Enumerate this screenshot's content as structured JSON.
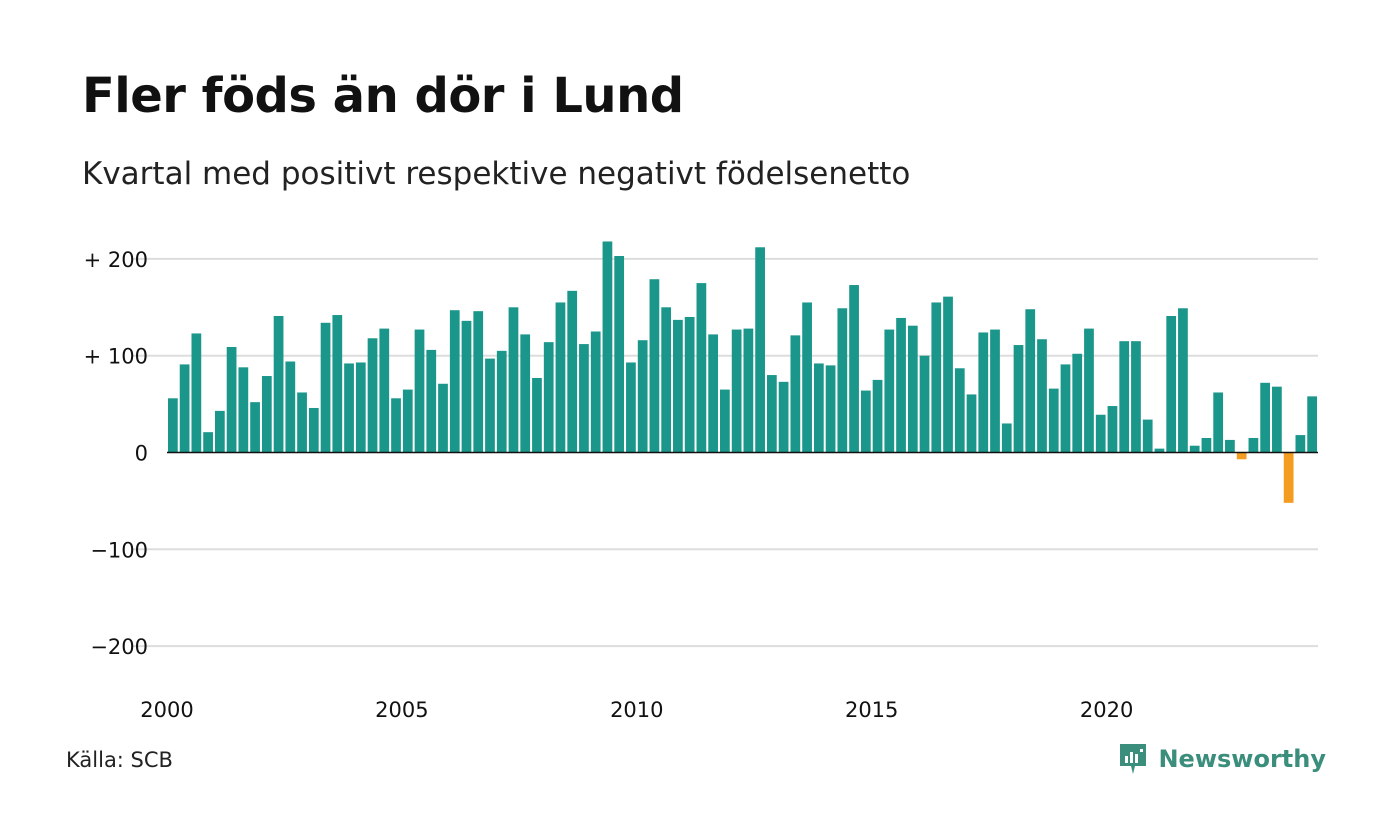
{
  "title": "Fler föds än dör i Lund",
  "subtitle": "Kvartal med positivt respektive negativt födelsenetto",
  "source": "Källa: SCB",
  "brand": {
    "name": "Newsworthy",
    "icon": "newsworthy-logo-icon",
    "color": "#3c8e7c"
  },
  "colors": {
    "positive": "#1b968a",
    "negative": "#f39c1f",
    "grid": "#dddddd",
    "axis": "#111111"
  },
  "chart_data": {
    "type": "bar",
    "x_start": 2000,
    "periods_per_year": 4,
    "ylim": [
      -220,
      230
    ],
    "y_ticks": [
      200,
      100,
      0,
      -100,
      -200
    ],
    "y_tick_labels": [
      "+ 200",
      "+ 100",
      "0",
      "−100",
      "−200"
    ],
    "x_ticks": [
      2000,
      2005,
      2010,
      2015,
      2020
    ],
    "x_tick_labels": [
      "2000",
      "2005",
      "2010",
      "2015",
      "2020"
    ],
    "grid": true,
    "legend": "none",
    "values": [
      56,
      91,
      123,
      21,
      43,
      109,
      88,
      52,
      79,
      141,
      94,
      62,
      46,
      134,
      142,
      92,
      93,
      118,
      128,
      56,
      65,
      127,
      106,
      71,
      147,
      136,
      146,
      97,
      105,
      150,
      122,
      77,
      114,
      155,
      167,
      112,
      125,
      218,
      203,
      93,
      116,
      179,
      150,
      137,
      140,
      175,
      122,
      65,
      127,
      128,
      212,
      80,
      73,
      121,
      155,
      92,
      90,
      149,
      173,
      64,
      75,
      127,
      139,
      131,
      100,
      155,
      161,
      87,
      60,
      124,
      127,
      30,
      111,
      148,
      117,
      66,
      91,
      102,
      128,
      39,
      48,
      115,
      115,
      34,
      4,
      141,
      149,
      7,
      15,
      62,
      13,
      -7,
      15,
      72,
      68,
      -52,
      18,
      58
    ]
  }
}
